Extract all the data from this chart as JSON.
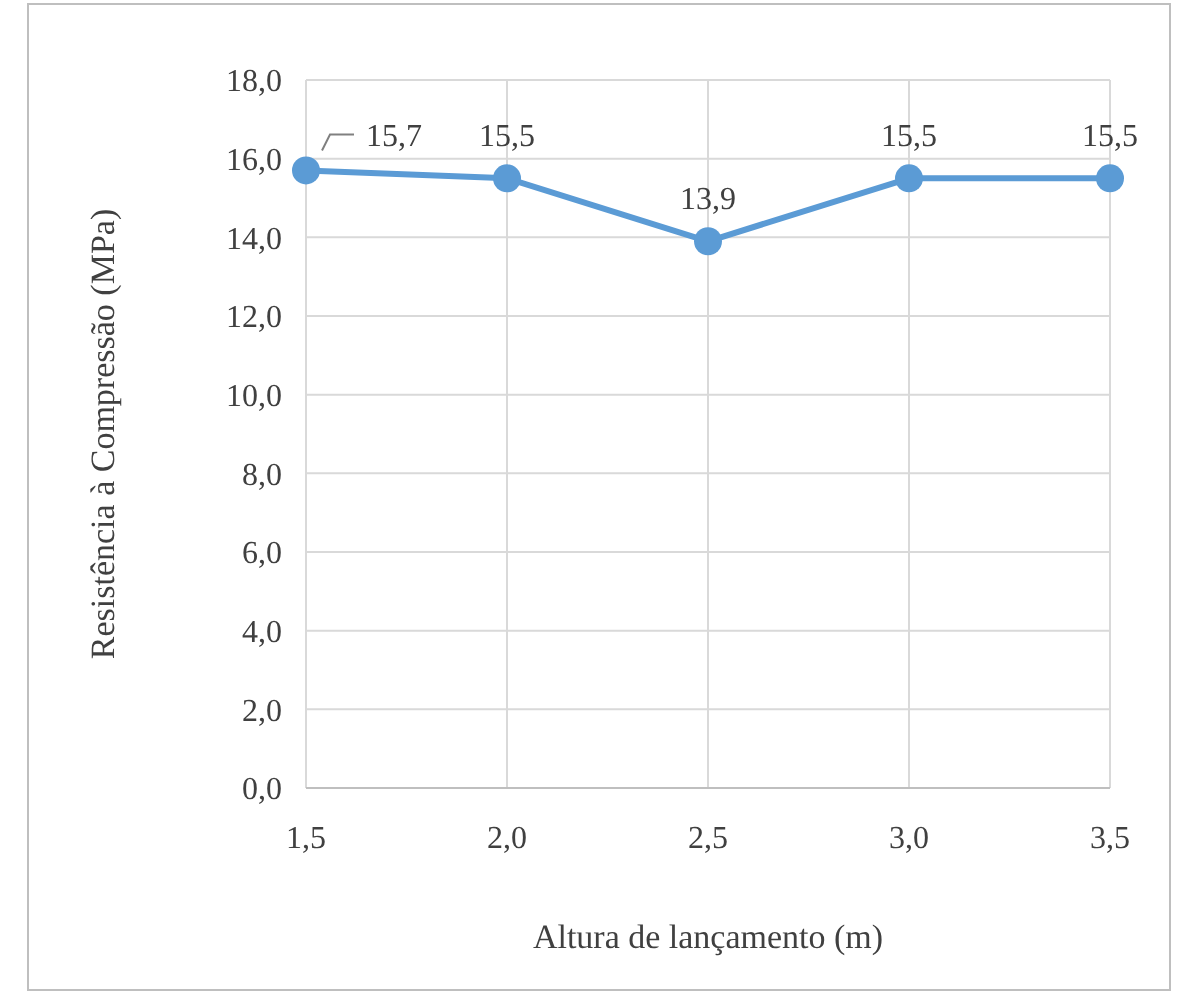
{
  "chart_data": {
    "type": "line",
    "xlabel": "Altura de lançamento (m)",
    "ylabel": "Resistência à Compressão (MPa)",
    "x": [
      1.5,
      2.0,
      2.5,
      3.0,
      3.5
    ],
    "series": [
      {
        "color": "#5b9bd5",
        "values": [
          15.7,
          15.5,
          13.9,
          15.5,
          15.5
        ],
        "value_labels": [
          "15,7",
          "15,5",
          "13,9",
          "15,5",
          "15,5"
        ]
      }
    ],
    "xlim": [
      1.5,
      3.5
    ],
    "xticks": [
      {
        "value": 1.5,
        "label": "1,5"
      },
      {
        "value": 2.0,
        "label": "2,0"
      },
      {
        "value": 2.5,
        "label": "2,5"
      },
      {
        "value": 3.0,
        "label": "3,0"
      },
      {
        "value": 3.5,
        "label": "3,5"
      }
    ],
    "ylim": [
      0,
      18
    ],
    "yticks": [
      {
        "value": 0,
        "label": "0,0"
      },
      {
        "value": 2,
        "label": "2,0"
      },
      {
        "value": 4,
        "label": "4,0"
      },
      {
        "value": 6,
        "label": "6,0"
      },
      {
        "value": 8,
        "label": "8,0"
      },
      {
        "value": 10,
        "label": "10,0"
      },
      {
        "value": 12,
        "label": "12,0"
      },
      {
        "value": 14,
        "label": "14,0"
      },
      {
        "value": 16,
        "label": "16,0"
      },
      {
        "value": 18,
        "label": "18,0"
      }
    ],
    "grid": true,
    "marker": "circle",
    "line_style": "solid"
  }
}
